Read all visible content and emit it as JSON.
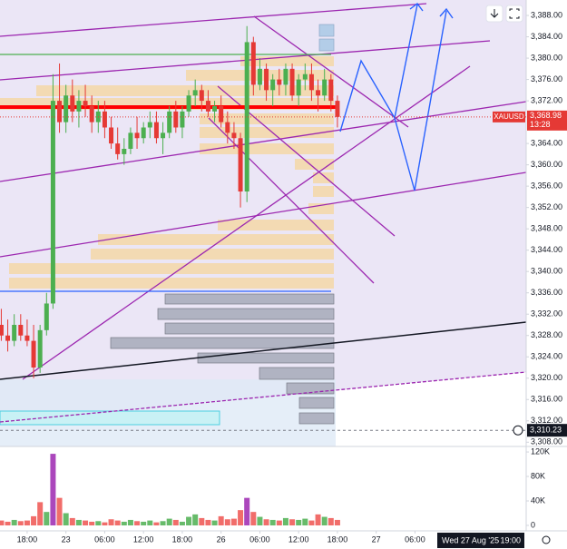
{
  "chart_data": {
    "type": "candlestick",
    "symbol": "XAUUSD",
    "x": [
      -4,
      -3,
      -2,
      -1,
      0,
      1,
      2,
      3,
      4,
      5,
      6,
      7,
      8,
      9,
      10,
      11,
      12,
      13,
      14,
      15,
      16,
      17,
      18,
      19,
      20,
      21,
      22,
      23,
      24,
      25,
      26,
      27,
      28,
      29,
      30,
      31,
      32,
      33,
      34,
      35,
      36,
      37,
      38,
      39,
      40,
      41,
      42,
      43,
      44,
      45,
      46,
      47,
      48
    ],
    "open": [
      3330,
      3328,
      3327,
      3330,
      3328,
      3327,
      3322,
      3329,
      3334,
      3372,
      3368,
      3373,
      3370,
      3372,
      3371,
      3368,
      3370,
      3367,
      3364,
      3362,
      3363,
      3366,
      3365,
      3367,
      3368,
      3365,
      3366,
      3370,
      3367,
      3370,
      3373,
      3374,
      3372,
      3370,
      3371,
      3368,
      3366,
      3365,
      3355,
      3383,
      3375,
      3378,
      3374,
      3376,
      3375,
      3378,
      3373,
      3376,
      3377,
      3374,
      3373,
      3376,
      3372
    ],
    "high": [
      3333,
      3331,
      3332,
      3332,
      3331,
      3330,
      3330,
      3336,
      3377,
      3379,
      3375,
      3376,
      3374,
      3375,
      3373,
      3372,
      3372,
      3369,
      3367,
      3365,
      3367,
      3369,
      3368,
      3370,
      3370,
      3368,
      3371,
      3372,
      3371,
      3374,
      3376,
      3375,
      3374,
      3372,
      3373,
      3370,
      3368,
      3366,
      3386,
      3384,
      3380,
      3379,
      3377,
      3378,
      3379,
      3379,
      3377,
      3379,
      3379,
      3376,
      3378,
      3377,
      3373
    ],
    "low": [
      3327,
      3325,
      3326,
      3327,
      3326,
      3320,
      3321,
      3328,
      3333,
      3366,
      3366,
      3368,
      3367,
      3369,
      3366,
      3366,
      3365,
      3363,
      3361,
      3360,
      3362,
      3363,
      3364,
      3365,
      3364,
      3362,
      3365,
      3366,
      3365,
      3369,
      3371,
      3370,
      3369,
      3368,
      3367,
      3364,
      3363,
      3352,
      3353,
      3373,
      3374,
      3372,
      3371,
      3373,
      3373,
      3372,
      3371,
      3374,
      3372,
      3370,
      3372,
      3370,
      3367
    ],
    "close": [
      3328,
      3327,
      3330,
      3328,
      3327,
      3322,
      3329,
      3334,
      3372,
      3368,
      3373,
      3370,
      3372,
      3371,
      3368,
      3370,
      3367,
      3364,
      3362,
      3363,
      3366,
      3365,
      3367,
      3368,
      3365,
      3366,
      3370,
      3367,
      3370,
      3373,
      3374,
      3372,
      3370,
      3371,
      3368,
      3366,
      3365,
      3355,
      3383,
      3375,
      3378,
      3374,
      3376,
      3375,
      3378,
      3373,
      3376,
      3377,
      3374,
      3373,
      3376,
      3372,
      3368.98
    ],
    "volume": [
      8000,
      6000,
      9000,
      7000,
      8000,
      15000,
      38000,
      22000,
      117000,
      45000,
      20000,
      12000,
      9000,
      8000,
      6000,
      7000,
      5000,
      10000,
      8000,
      6000,
      9000,
      7000,
      6000,
      8000,
      5000,
      7000,
      11000,
      9000,
      6000,
      14000,
      18000,
      12000,
      9000,
      8000,
      15000,
      10000,
      11000,
      25000,
      45000,
      22000,
      14000,
      10000,
      9000,
      8000,
      12000,
      10000,
      9000,
      11000,
      8000,
      18000,
      14000,
      12000,
      9000
    ],
    "volume_colors": [
      "#ef5350",
      "#ef5350",
      "#4caf50",
      "#ef5350",
      "#ef5350",
      "#ef5350",
      "#ef5350",
      "#4caf50",
      "#9c27b0",
      "#ef5350",
      "#4caf50",
      "#ef5350",
      "#4caf50",
      "#ef5350",
      "#ef5350",
      "#4caf50",
      "#ef5350",
      "#ef5350",
      "#ef5350",
      "#4caf50",
      "#4caf50",
      "#ef5350",
      "#4caf50",
      "#4caf50",
      "#ef5350",
      "#4caf50",
      "#4caf50",
      "#ef5350",
      "#4caf50",
      "#4caf50",
      "#4caf50",
      "#ef5350",
      "#ef5350",
      "#4caf50",
      "#ef5350",
      "#ef5350",
      "#ef5350",
      "#ef5350",
      "#9c27b0",
      "#ef5350",
      "#4caf50",
      "#ef5350",
      "#4caf50",
      "#ef5350",
      "#4caf50",
      "#ef5350",
      "#4caf50",
      "#4caf50",
      "#ef5350",
      "#ef5350",
      "#4caf50",
      "#ef5350",
      "#ef5350"
    ],
    "up_color": "#4caf50",
    "down_color": "#e53935",
    "xlim": [
      -4.2,
      77.2
    ],
    "xticks": [
      {
        "value": 0,
        "label": "18:00"
      },
      {
        "value": 6,
        "label": "23"
      },
      {
        "value": 12,
        "label": "06:00"
      },
      {
        "value": 18,
        "label": "12:00"
      },
      {
        "value": 24,
        "label": "18:00"
      },
      {
        "value": 30,
        "label": "26"
      },
      {
        "value": 36,
        "label": "06:00"
      },
      {
        "value": 42,
        "label": "12:00"
      },
      {
        "value": 48,
        "label": "18:00"
      },
      {
        "value": 54,
        "label": "27"
      },
      {
        "value": 60,
        "label": "06:00"
      }
    ],
    "ylim": [
      3307.2,
      3390.9
    ],
    "yticks": [
      {
        "value": 3388,
        "label": "3,388.00"
      },
      {
        "value": 3384,
        "label": "3,384.00"
      },
      {
        "value": 3380,
        "label": "3,380.00"
      },
      {
        "value": 3376,
        "label": "3,376.00"
      },
      {
        "value": 3372,
        "label": "3,372.00"
      },
      {
        "value": 3364,
        "label": "3,364.00"
      },
      {
        "value": 3360,
        "label": "3,360.00"
      },
      {
        "value": 3356,
        "label": "3,356.00"
      },
      {
        "value": 3352,
        "label": "3,352.00"
      },
      {
        "value": 3348,
        "label": "3,348.00"
      },
      {
        "value": 3344,
        "label": "3,344.00"
      },
      {
        "value": 3340,
        "label": "3,340.00"
      },
      {
        "value": 3336,
        "label": "3,336.00"
      },
      {
        "value": 3332,
        "label": "3,332.00"
      },
      {
        "value": 3328,
        "label": "3,328.00"
      },
      {
        "value": 3324,
        "label": "3,324.00"
      },
      {
        "value": 3320,
        "label": "3,320.00"
      },
      {
        "value": 3316,
        "label": "3,316.00"
      },
      {
        "value": 3312,
        "label": "3,312.00"
      },
      {
        "value": 3308,
        "label": "3,308.00"
      }
    ],
    "volume_ylim": [
      0,
      129000
    ],
    "volume_yticks": [
      {
        "value": 120000,
        "label": "120K"
      },
      {
        "value": 80000,
        "label": "80K"
      },
      {
        "value": 40000,
        "label": "40K"
      },
      0
    ],
    "last_price": {
      "value": 3368.98,
      "label": "3,368.98"
    },
    "countdown": "13:28",
    "crosshair_price": {
      "value": 3310.23,
      "label": "3,310.23"
    },
    "crosshair_date": "Wed 27 Aug '25",
    "crosshair_time": "19:00"
  }
}
